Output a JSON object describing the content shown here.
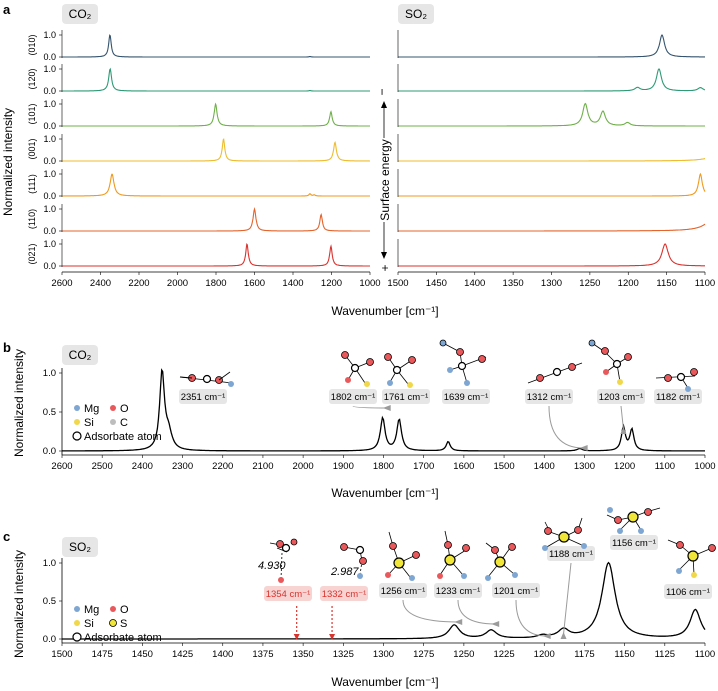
{
  "colors": {
    "c010": "#35546e",
    "c120": "#2e9a76",
    "c101": "#6fb04a",
    "c001": "#eebc2e",
    "c111": "#ef9a1c",
    "c110": "#e4642c",
    "c021": "#d9332e",
    "spectrum": "#000000",
    "tag_bg": "#e6e6e6",
    "tag_red_bg": "#f7d4d2",
    "tag_red_text": "#d9332e",
    "mg": "#7ea6d2",
    "o": "#e9585a",
    "si": "#f0d84a",
    "c": "#bdbdbd",
    "s": "#f0e63a",
    "arrow_gray": "#9b9b9b",
    "arrow_red": "#d9332e"
  },
  "panel_a": {
    "label": "a",
    "co2_tag": "CO₂",
    "so2_tag": "SO₂",
    "ylabel": "Normalized intensity",
    "xlabel": "Wavenumber [cm⁻¹]",
    "surface_energy_label": "Surface energy",
    "minus_sign": "−",
    "plus_sign": "+",
    "facets": [
      "(010)",
      "(120)",
      "(101)",
      "(001)",
      "(111)",
      "(110)",
      "(021)"
    ],
    "facet_colors": [
      "c010",
      "c120",
      "c101",
      "c001",
      "c111",
      "c110",
      "c021"
    ],
    "ytick_labels": [
      "0.0",
      "1.0"
    ]
  },
  "panel_b": {
    "label": "b",
    "tag": "CO₂",
    "ylabel": "Normalized intensity",
    "xlabel": "Wavenumber [cm⁻¹]",
    "legend": {
      "mg": "Mg",
      "o": "O",
      "si": "Si",
      "c": "C",
      "adsorbate": "Adsorbate atom"
    },
    "annotations": [
      "2351 cm⁻¹",
      "1802 cm⁻¹",
      "1761 cm⁻¹",
      "1639 cm⁻¹",
      "1312 cm⁻¹",
      "1203 cm⁻¹",
      "1182 cm⁻¹"
    ]
  },
  "panel_c": {
    "label": "c",
    "tag": "SO₂",
    "ylabel": "Normalized intensity",
    "xlabel": "Wavenumber [cm⁻¹]",
    "legend": {
      "mg": "Mg",
      "o": "O",
      "si": "Si",
      "s": "S",
      "adsorbate": "Adsorbate atom"
    },
    "annotations": [
      "1354 cm⁻¹",
      "1332 cm⁻¹",
      "1256 cm⁻¹",
      "1233 cm⁻¹",
      "1201 cm⁻¹",
      "1188 cm⁻¹",
      "1156 cm⁻¹",
      "1106 cm⁻¹"
    ],
    "distance_labels": [
      "4.930",
      "2.987"
    ]
  },
  "chart_data": [
    {
      "type": "line",
      "id": "a_co2",
      "title": "CO₂",
      "xlabel": "Wavenumber [cm⁻¹]",
      "ylabel": "Normalized intensity",
      "xlim": [
        2600,
        1000
      ],
      "ylim": [
        0,
        1
      ],
      "x_ticks": [
        2600,
        2400,
        2200,
        2000,
        1800,
        1600,
        1400,
        1200,
        1000
      ],
      "series": [
        {
          "name": "(010)",
          "color": "c010",
          "peaks": [
            [
              2351,
              1.0,
              8
            ],
            [
              1312,
              0.02,
              6
            ]
          ]
        },
        {
          "name": "(120)",
          "color": "c120",
          "peaks": [
            [
              2350,
              1.0,
              9
            ],
            [
              1312,
              0.02,
              6
            ]
          ]
        },
        {
          "name": "(101)",
          "color": "c101",
          "peaks": [
            [
              1802,
              1.0,
              9
            ],
            [
              1203,
              0.65,
              8
            ]
          ]
        },
        {
          "name": "(001)",
          "color": "c001",
          "peaks": [
            [
              1761,
              1.0,
              8
            ],
            [
              1182,
              0.85,
              9
            ]
          ]
        },
        {
          "name": "(111)",
          "color": "c111",
          "peaks": [
            [
              2340,
              1.0,
              12
            ],
            [
              1312,
              0.1,
              6
            ],
            [
              1290,
              0.05,
              6
            ]
          ]
        },
        {
          "name": "(110)",
          "color": "c110",
          "peaks": [
            [
              1600,
              1.0,
              9
            ],
            [
              1254,
              0.75,
              8
            ]
          ]
        },
        {
          "name": "(021)",
          "color": "c021",
          "peaks": [
            [
              1639,
              1.0,
              8
            ],
            [
              1203,
              0.9,
              8
            ]
          ]
        }
      ]
    },
    {
      "type": "line",
      "id": "a_so2",
      "title": "SO₂",
      "xlabel": "Wavenumber [cm⁻¹]",
      "xlim": [
        1500,
        1100
      ],
      "ylim": [
        0,
        1
      ],
      "x_ticks": [
        1500,
        1450,
        1400,
        1350,
        1300,
        1250,
        1200,
        1150,
        1100
      ],
      "series": [
        {
          "name": "(010)",
          "color": "c010",
          "peaks": [
            [
              1156,
              1.0,
              4
            ]
          ]
        },
        {
          "name": "(120)",
          "color": "c120",
          "peaks": [
            [
              1160,
              1.0,
              4
            ],
            [
              1188,
              0.15,
              4
            ],
            [
              1106,
              0.15,
              4
            ]
          ]
        },
        {
          "name": "(101)",
          "color": "c101",
          "peaks": [
            [
              1256,
              1.0,
              4
            ],
            [
              1233,
              0.65,
              4
            ],
            [
              1201,
              0.15,
              4
            ]
          ]
        },
        {
          "name": "(001)",
          "color": "c001",
          "peaks": [
            [
              1080,
              0.3,
              15
            ]
          ]
        },
        {
          "name": "(111)",
          "color": "c111",
          "peaks": [
            [
              1106,
              1.0,
              3
            ]
          ]
        },
        {
          "name": "(110)",
          "color": "c110",
          "peaks": [
            [
              1085,
              0.8,
              12
            ]
          ]
        },
        {
          "name": "(021)",
          "color": "c021",
          "peaks": [
            [
              1152,
              1.0,
              5
            ]
          ]
        }
      ]
    },
    {
      "type": "line",
      "id": "b",
      "title": "CO₂",
      "xlabel": "Wavenumber [cm⁻¹]",
      "ylabel": "Normalized intensity",
      "xlim": [
        2600,
        1000
      ],
      "ylim": [
        0,
        1
      ],
      "x_ticks": [
        2600,
        2500,
        2400,
        2300,
        2200,
        2100,
        2000,
        1900,
        1800,
        1700,
        1600,
        1500,
        1400,
        1300,
        1200,
        1100,
        1000
      ],
      "y_ticks": [
        0.0,
        0.5,
        1.0
      ],
      "series": [
        {
          "name": "total",
          "color": "spectrum",
          "peaks": [
            [
              2351,
              1.0,
              7
            ],
            [
              2335,
              0.22,
              10
            ],
            [
              1802,
              0.42,
              7
            ],
            [
              1761,
              0.4,
              7
            ],
            [
              1639,
              0.12,
              6
            ],
            [
              1312,
              0.03,
              8
            ],
            [
              1203,
              0.3,
              6
            ],
            [
              1182,
              0.27,
              6
            ]
          ]
        }
      ]
    },
    {
      "type": "line",
      "id": "c",
      "title": "SO₂",
      "xlabel": "Wavenumber [cm⁻¹]",
      "ylabel": "Normalized intensity",
      "xlim": [
        1500,
        1100
      ],
      "ylim": [
        0,
        1
      ],
      "x_ticks": [
        1500,
        1475,
        1450,
        1425,
        1400,
        1375,
        1350,
        1325,
        1300,
        1275,
        1250,
        1225,
        1200,
        1175,
        1150,
        1125,
        1100
      ],
      "y_ticks": [
        0.0,
        0.5,
        1.0
      ],
      "series": [
        {
          "name": "total",
          "color": "spectrum",
          "peaks": [
            [
              1256,
              0.18,
              4
            ],
            [
              1233,
              0.11,
              4
            ],
            [
              1201,
              0.035,
              4
            ],
            [
              1188,
              0.11,
              4
            ],
            [
              1160,
              1.0,
              5
            ],
            [
              1106,
              0.38,
              4
            ]
          ]
        }
      ]
    }
  ]
}
